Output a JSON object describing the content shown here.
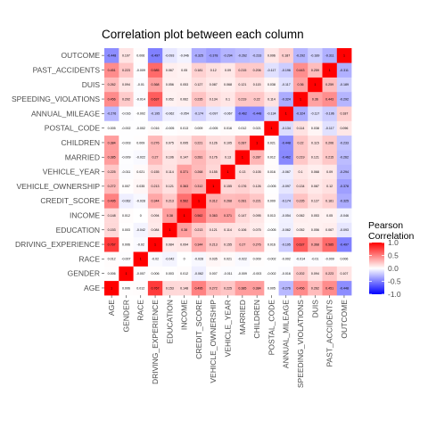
{
  "chart_data": {
    "type": "heatmap",
    "title": "Correlation plot between each column",
    "variables": [
      "AGE",
      "GENDER",
      "RACE",
      "DRIVING_EXPERIENCE",
      "EDUCATION",
      "INCOME",
      "CREDIT_SCORE",
      "VEHICLE_OWNERSHIP",
      "VEHICLE_YEAR",
      "MARRIED",
      "CHILDREN",
      "POSTAL_CODE",
      "ANNUAL_MILEAGE",
      "SPEEDING_VIOLATIONS",
      "DUIS",
      "PAST_ACCIDENTS",
      "OUTCOME"
    ],
    "matrix": [
      [
        1,
        0.006,
        0.012,
        0.767,
        0.153,
        0.148,
        0.495,
        0.272,
        0.225,
        0.385,
        0.384,
        0.005,
        -0.276,
        0.456,
        0.262,
        0.451,
        -0.448
      ],
      [
        0.006,
        1,
        -0.007,
        0.006,
        0.003,
        0.012,
        -0.062,
        0.007,
        -0.011,
        -0.009,
        -0.003,
        -0.002,
        -0.016,
        0.202,
        0.094,
        0.223,
        0.107
      ],
      [
        0.012,
        -0.007,
        1,
        -0.02,
        -0.042,
        0,
        -0.028,
        0.035,
        0.021,
        -0.022,
        0.009,
        -0.002,
        -0.002,
        -0.014,
        -0.01,
        -0.009,
        0.006
      ],
      [
        0.767,
        0.006,
        -0.02,
        1,
        0.084,
        0.094,
        0.344,
        0.213,
        0.155,
        0.27,
        0.276,
        0.016,
        -0.195,
        0.637,
        0.368,
        0.585,
        -0.497
      ],
      [
        0.153,
        0.003,
        -0.042,
        0.084,
        1,
        0.38,
        0.213,
        0.121,
        0.114,
        0.106,
        0.075,
        -0.005,
        -0.062,
        0.052,
        0.056,
        0.067,
        -0.093
      ],
      [
        0.148,
        0.012,
        0,
        0.094,
        0.38,
        1,
        0.562,
        0.363,
        0.371,
        0.147,
        0.095,
        0.013,
        -0.054,
        0.062,
        0.053,
        0.05,
        -0.046
      ],
      [
        0.495,
        -0.062,
        -0.028,
        0.344,
        0.213,
        0.562,
        1,
        0.312,
        0.268,
        0.281,
        0.221,
        0.009,
        -0.174,
        0.235,
        0.127,
        0.181,
        -0.325
      ],
      [
        0.272,
        0.007,
        0.035,
        0.213,
        0.121,
        0.363,
        0.312,
        1,
        0.155,
        0.176,
        0.126,
        -0.005,
        -0.097,
        0.134,
        0.087,
        0.12,
        -0.378
      ],
      [
        0.225,
        -0.011,
        0.021,
        0.155,
        0.114,
        0.371,
        0.268,
        0.155,
        1,
        0.13,
        0.105,
        0.016,
        -0.067,
        0.1,
        0.068,
        0.09,
        -0.294
      ],
      [
        0.385,
        -0.009,
        -0.022,
        0.27,
        0.106,
        0.147,
        0.281,
        0.176,
        0.13,
        1,
        0.287,
        0.012,
        -0.462,
        0.219,
        0.121,
        0.215,
        -0.262
      ],
      [
        0.384,
        -0.003,
        0.009,
        0.276,
        0.075,
        0.095,
        0.221,
        0.126,
        0.105,
        0.287,
        1,
        0.021,
        -0.448,
        0.22,
        0.115,
        0.206,
        -0.233
      ],
      [
        0.005,
        -0.002,
        -0.002,
        0.016,
        -0.005,
        0.013,
        0.009,
        -0.005,
        0.016,
        0.012,
        0.021,
        1,
        -0.134,
        0.114,
        0.038,
        -0.117,
        0.096
      ],
      [
        -0.276,
        -0.016,
        -0.002,
        -0.195,
        -0.062,
        -0.054,
        -0.174,
        -0.097,
        -0.067,
        -0.462,
        -0.448,
        -0.134,
        1,
        -0.324,
        -0.117,
        -0.196,
        0.187
      ],
      [
        0.456,
        0.202,
        -0.014,
        0.637,
        0.052,
        0.062,
        0.235,
        0.134,
        0.1,
        0.219,
        0.22,
        0.114,
        -0.324,
        1,
        0.36,
        0.443,
        -0.292
      ],
      [
        0.262,
        0.094,
        -0.01,
        0.368,
        0.056,
        0.053,
        0.127,
        0.087,
        0.068,
        0.121,
        0.115,
        0.038,
        -0.117,
        0.36,
        1,
        0.259,
        -0.189
      ],
      [
        0.451,
        0.223,
        -0.009,
        0.585,
        0.067,
        0.05,
        0.181,
        0.12,
        0.09,
        0.215,
        0.206,
        -0.117,
        -0.196,
        0.443,
        0.259,
        1,
        -0.311
      ],
      [
        -0.448,
        0.107,
        0.006,
        -0.497,
        -0.093,
        -0.046,
        -0.325,
        -0.378,
        -0.294,
        -0.262,
        -0.233,
        0.096,
        0.187,
        -0.292,
        -0.189,
        -0.311,
        1
      ]
    ],
    "color_scale": {
      "low": "#0000ff",
      "mid": "#ffffff",
      "high": "#ff0000",
      "limits": [
        -1,
        1
      ]
    },
    "legend": {
      "title": [
        "Pearson",
        "Correlation"
      ],
      "ticks": [
        1.0,
        0.5,
        0.0,
        -0.5,
        -1.0
      ],
      "tick_labels": [
        "1.0",
        "0.5",
        "0.0",
        "-0.5",
        "-1.0"
      ],
      "position": "right"
    },
    "cell_labels_shown": true,
    "grid": false
  }
}
